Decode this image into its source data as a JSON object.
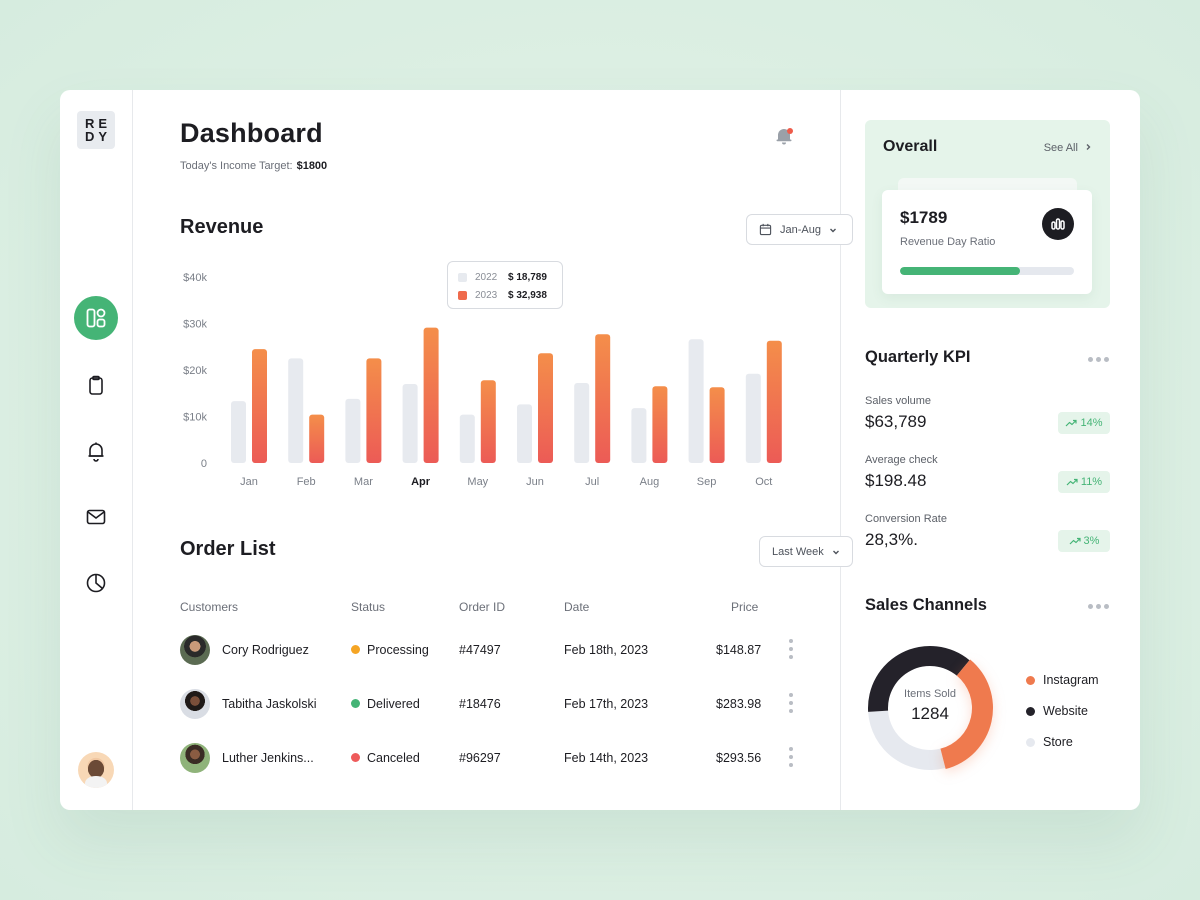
{
  "sidebar": {
    "logo_line1": "RE",
    "logo_line2": "DY",
    "nav": [
      "dashboard-icon",
      "clipboard-icon",
      "bell-icon",
      "mail-icon",
      "pie-chart-icon"
    ]
  },
  "header": {
    "title": "Dashboard",
    "income_label": "Today's Income Target:",
    "income_value": "$1800"
  },
  "revenue": {
    "title": "Revenue",
    "range": "Jan-Aug",
    "tooltip": [
      {
        "year": "2022",
        "value": "$ 18,789"
      },
      {
        "year": "2023",
        "value": "$ 32,938"
      }
    ]
  },
  "chart_data": {
    "type": "bar",
    "categories": [
      "Jan",
      "Feb",
      "Mar",
      "Apr",
      "May",
      "Jun",
      "Jul",
      "Aug",
      "Sep",
      "Oct"
    ],
    "highlighted_category": "Apr",
    "series": [
      {
        "name": "2022",
        "color": "#e7eaef",
        "values": [
          13300,
          22500,
          13800,
          17000,
          10400,
          12600,
          17200,
          11800,
          26600,
          19200
        ]
      },
      {
        "name": "2023",
        "color": "#ef6a4c",
        "values": [
          24500,
          10400,
          22500,
          29100,
          17800,
          23600,
          27700,
          16500,
          16300,
          26300
        ]
      }
    ],
    "yticks": [
      "0",
      "$10k",
      "$20k",
      "$30k",
      "$40k"
    ],
    "ylim": [
      0,
      40000
    ],
    "grid": false
  },
  "orders": {
    "title": "Order List",
    "range": "Last Week",
    "columns": [
      "Customers",
      "Status",
      "Order ID",
      "Date",
      "Price"
    ],
    "rows": [
      {
        "customer": "Cory Rodriguez",
        "status": "Processing",
        "status_color": "#f5a524",
        "id": "#47497",
        "date": "Feb 18th, 2023",
        "price": "$148.87"
      },
      {
        "customer": "Tabitha Jaskolski",
        "status": "Delivered",
        "status_color": "#45b476",
        "id": "#18476",
        "date": "Feb 17th, 2023",
        "price": "$283.98"
      },
      {
        "customer": "Luther Jenkins...",
        "status": "Canceled",
        "status_color": "#ee5b5b",
        "id": "#96297",
        "date": "Feb 14th, 2023",
        "price": "$293.56"
      }
    ]
  },
  "overall": {
    "title": "Overall",
    "see_all": "See All",
    "amount": "$1789",
    "subtitle": "Revenue Day Ratio",
    "progress": 0.69
  },
  "kpi": {
    "title": "Quarterly KPI",
    "items": [
      {
        "label": "Sales volume",
        "value": "$63,789",
        "change": "14%"
      },
      {
        "label": "Average check",
        "value": "$198.48",
        "change": "11%"
      },
      {
        "label": "Conversion Rate",
        "value": "28,3%.",
        "change": "3%"
      }
    ]
  },
  "channels": {
    "title": "Sales Channels",
    "center_label": "Items Sold",
    "center_value": "1284",
    "legend": [
      {
        "name": "Instagram",
        "color": "#ef7a4e",
        "share": 0.35
      },
      {
        "name": "Website",
        "color": "#24222a",
        "share": 0.37
      },
      {
        "name": "Store",
        "color": "#e6e9ef",
        "share": 0.28
      }
    ]
  }
}
